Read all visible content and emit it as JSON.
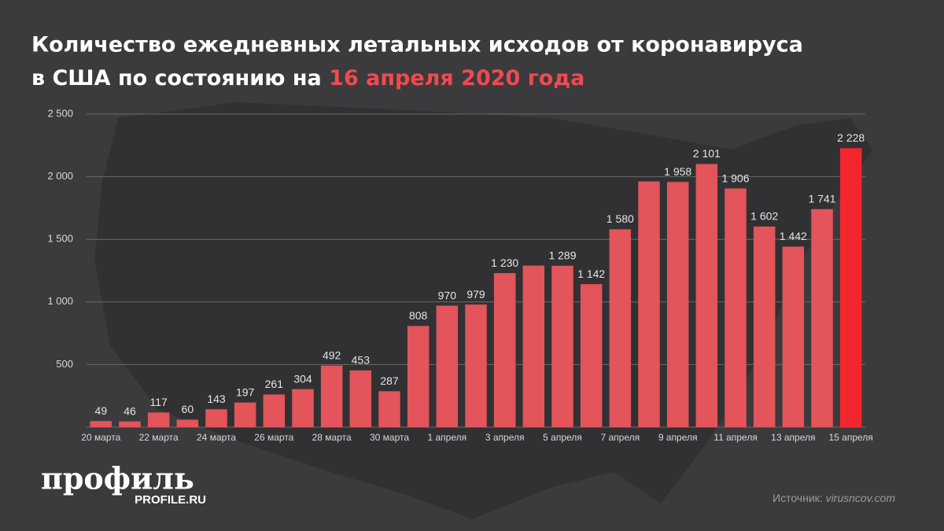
{
  "chart_data": {
    "type": "bar",
    "title": {
      "line1": "Количество ежедневных летальных исходов от коронавируса",
      "line2": "в США по состоянию на",
      "highlight": "16 апреля 2020 года"
    },
    "categories": [
      "20 марта",
      null,
      "22 марта",
      null,
      "24 марта",
      null,
      "26 марта",
      null,
      "28 марта",
      null,
      "30 марта",
      null,
      "1 апреля",
      null,
      "3 апреля",
      null,
      "5 апреля",
      null,
      "7 апреля",
      null,
      "9 апреля",
      null,
      "11 апреля",
      null,
      "13 апреля",
      null,
      "15 апреля"
    ],
    "values": [
      49,
      46,
      117,
      60,
      143,
      197,
      261,
      304,
      492,
      453,
      287,
      808,
      970,
      979,
      1230,
      1290,
      1289,
      1142,
      1580,
      1962,
      1958,
      2101,
      1906,
      1602,
      1442,
      1741,
      2228
    ],
    "value_labels": [
      "49",
      "46",
      "117",
      "60",
      "143",
      "197",
      "261",
      "304",
      "492",
      "453",
      "287",
      "808",
      "970",
      "979",
      "1 230",
      null,
      "1 289",
      "1 142",
      "1 580",
      null,
      "1 958",
      "2 101",
      "1 906",
      "1 602",
      "1 442",
      "1 741",
      "2 228"
    ],
    "colors": [
      "#e3545b",
      "#e3545b",
      "#e3545b",
      "#e3545b",
      "#e3545b",
      "#e3545b",
      "#e3545b",
      "#e3545b",
      "#e3545b",
      "#e3545b",
      "#e3545b",
      "#e3545b",
      "#e3545b",
      "#e3545b",
      "#e3545b",
      "#e3545b",
      "#e3545b",
      "#e3545b",
      "#e3545b",
      "#e3545b",
      "#e3545b",
      "#e3545b",
      "#e3545b",
      "#e3545b",
      "#e3545b",
      "#e3545b",
      "#f4262d"
    ],
    "ylim": [
      0,
      2500
    ],
    "yticks": [
      500,
      {
        "value": 1000,
        "label": "1 000"
      },
      {
        "value": 1500,
        "label": "1 500"
      },
      {
        "value": 2000,
        "label": "2 000"
      },
      {
        "value": 2500,
        "label": "2 500"
      }
    ],
    "grid": true
  },
  "brand": {
    "name": "профиль",
    "site": "PROFILE.RU"
  },
  "source": {
    "label": "Источник:",
    "site": "virusncov.com"
  }
}
